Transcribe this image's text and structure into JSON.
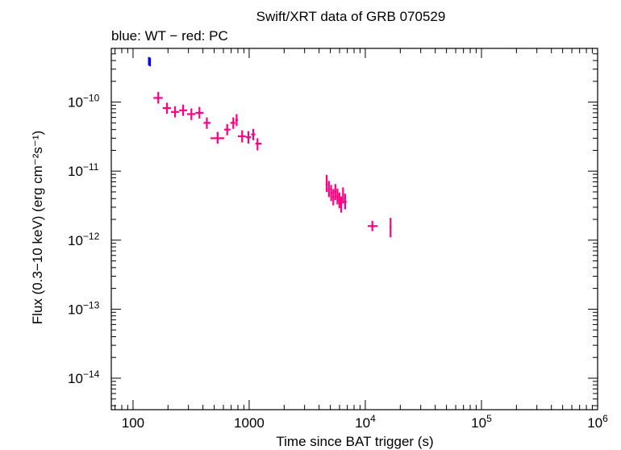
{
  "chart_data": {
    "type": "scatter",
    "title": "Swift/XRT data of GRB 070529",
    "subtitle": "blue: WT − red: PC",
    "xlabel": "Time since BAT trigger (s)",
    "ylabel": "Flux (0.3−10 keV) (erg cm⁻²s⁻¹)",
    "x_scale": "log",
    "y_scale": "log",
    "xlim": [
      65,
      1000000
    ],
    "ylim": [
      3.5e-15,
      6e-10
    ],
    "grid": false,
    "x_ticks": [
      {
        "value": 100,
        "label": "100",
        "sup": ""
      },
      {
        "value": 1000,
        "label": "1000",
        "sup": ""
      },
      {
        "value": 10000,
        "label": "10",
        "sup": "4"
      },
      {
        "value": 100000,
        "label": "10",
        "sup": "5"
      },
      {
        "value": 1000000,
        "label": "10",
        "sup": "6"
      }
    ],
    "y_ticks": [
      {
        "value": 1e-10,
        "label": "10",
        "sup": "−10"
      },
      {
        "value": 1e-11,
        "label": "10",
        "sup": "−11"
      },
      {
        "value": 1e-12,
        "label": "10",
        "sup": "−12"
      },
      {
        "value": 1e-13,
        "label": "10",
        "sup": "−13"
      },
      {
        "value": 1e-14,
        "label": "10",
        "sup": "−14"
      }
    ],
    "series": [
      {
        "name": "WT",
        "color": "#0000ff",
        "points": [
          {
            "x": 137,
            "y": 3.9e-10,
            "xlo": 135,
            "xhi": 139,
            "ylo": 3.4e-10,
            "yhi": 4.5e-10
          },
          {
            "x": 140,
            "y": 3.8e-10,
            "xlo": 139,
            "xhi": 141,
            "ylo": 3.3e-10,
            "yhi": 4.4e-10
          }
        ]
      },
      {
        "name": "PC",
        "color": "#ff0080",
        "points": [
          {
            "x": 165,
            "y": 1.15e-10,
            "xlo": 150,
            "xhi": 180,
            "ylo": 9.5e-11,
            "yhi": 1.4e-10
          },
          {
            "x": 196,
            "y": 8.2e-11,
            "xlo": 180,
            "xhi": 212,
            "ylo": 6.8e-11,
            "yhi": 9.8e-11
          },
          {
            "x": 230,
            "y": 7.2e-11,
            "xlo": 212,
            "xhi": 250,
            "ylo": 6e-11,
            "yhi": 8.7e-11
          },
          {
            "x": 270,
            "y": 7.6e-11,
            "xlo": 250,
            "xhi": 292,
            "ylo": 6.3e-11,
            "yhi": 9.2e-11
          },
          {
            "x": 318,
            "y": 6.7e-11,
            "xlo": 292,
            "xhi": 345,
            "ylo": 5.5e-11,
            "yhi": 8.1e-11
          },
          {
            "x": 373,
            "y": 7e-11,
            "xlo": 345,
            "xhi": 405,
            "ylo": 5.8e-11,
            "yhi": 8.5e-11
          },
          {
            "x": 432,
            "y": 5e-11,
            "xlo": 405,
            "xhi": 465,
            "ylo": 4.1e-11,
            "yhi": 6e-11
          },
          {
            "x": 535,
            "y": 3e-11,
            "xlo": 465,
            "xhi": 610,
            "ylo": 2.5e-11,
            "yhi": 3.7e-11
          },
          {
            "x": 647,
            "y": 4e-11,
            "xlo": 610,
            "xhi": 690,
            "ylo": 3.3e-11,
            "yhi": 4.8e-11
          },
          {
            "x": 730,
            "y": 5e-11,
            "xlo": 690,
            "xhi": 760,
            "ylo": 4.1e-11,
            "yhi": 6e-11
          },
          {
            "x": 780,
            "y": 5.5e-11,
            "xlo": 760,
            "xhi": 800,
            "ylo": 4.5e-11,
            "yhi": 6.7e-11
          },
          {
            "x": 870,
            "y": 3.2e-11,
            "xlo": 800,
            "xhi": 935,
            "ylo": 2.6e-11,
            "yhi": 3.9e-11
          },
          {
            "x": 985,
            "y": 3.1e-11,
            "xlo": 935,
            "xhi": 1040,
            "ylo": 2.5e-11,
            "yhi": 3.8e-11
          },
          {
            "x": 1085,
            "y": 3.4e-11,
            "xlo": 1040,
            "xhi": 1130,
            "ylo": 2.8e-11,
            "yhi": 4.1e-11
          },
          {
            "x": 1180,
            "y": 2.5e-11,
            "xlo": 1130,
            "xhi": 1280,
            "ylo": 2e-11,
            "yhi": 3e-11
          },
          {
            "x": 4650,
            "y": 6.5e-12,
            "xlo": 4550,
            "xhi": 4750,
            "ylo": 5e-12,
            "yhi": 8.8e-12
          },
          {
            "x": 4860,
            "y": 5.5e-12,
            "xlo": 4750,
            "xhi": 4970,
            "ylo": 4.2e-12,
            "yhi": 7.2e-12
          },
          {
            "x": 5080,
            "y": 4.8e-12,
            "xlo": 4970,
            "xhi": 5190,
            "ylo": 3.7e-12,
            "yhi": 6.3e-12
          },
          {
            "x": 5300,
            "y": 4.2e-12,
            "xlo": 5190,
            "xhi": 5410,
            "ylo": 3.2e-12,
            "yhi": 5.5e-12
          },
          {
            "x": 5520,
            "y": 5e-12,
            "xlo": 5410,
            "xhi": 5630,
            "ylo": 3.8e-12,
            "yhi": 6.5e-12
          },
          {
            "x": 5750,
            "y": 4.3e-12,
            "xlo": 5630,
            "xhi": 5870,
            "ylo": 3.3e-12,
            "yhi": 5.6e-12
          },
          {
            "x": 5980,
            "y": 3.8e-12,
            "xlo": 5870,
            "xhi": 6090,
            "ylo": 2.9e-12,
            "yhi": 4.9e-12
          },
          {
            "x": 6200,
            "y": 3.3e-12,
            "xlo": 6090,
            "xhi": 6320,
            "ylo": 2.5e-12,
            "yhi": 4.3e-12
          },
          {
            "x": 6430,
            "y": 4.5e-12,
            "xlo": 6320,
            "xhi": 6550,
            "ylo": 3.4e-12,
            "yhi": 5.8e-12
          },
          {
            "x": 6700,
            "y": 3.6e-12,
            "xlo": 6550,
            "xhi": 6900,
            "ylo": 2.8e-12,
            "yhi": 4.7e-12
          },
          {
            "x": 11500,
            "y": 1.6e-12,
            "xlo": 10500,
            "xhi": 12800,
            "ylo": 1.35e-12,
            "yhi": 1.9e-12
          },
          {
            "x": 16500,
            "y": 1.55e-12,
            "xlo": 16200,
            "xhi": 16800,
            "ylo": 1.1e-12,
            "yhi": 2.1e-12
          }
        ]
      }
    ]
  }
}
